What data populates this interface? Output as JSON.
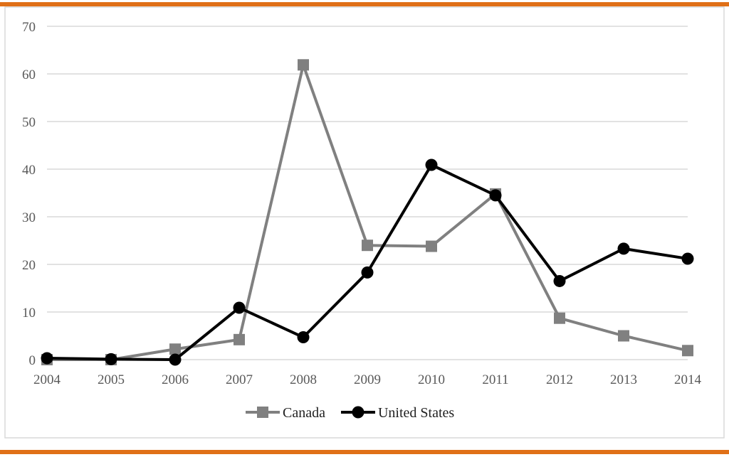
{
  "colors": {
    "accent_rule": "#e07018",
    "canada": "#808080",
    "united_states": "#000000",
    "grid": "#d9d9d9"
  },
  "chart_data": {
    "type": "line",
    "title": "",
    "xlabel": "",
    "ylabel": "",
    "categories": [
      "2004",
      "2005",
      "2006",
      "2007",
      "2008",
      "2009",
      "2010",
      "2011",
      "2012",
      "2013",
      "2014"
    ],
    "ylim": [
      0,
      70
    ],
    "yticks": [
      "0",
      "10",
      "20",
      "30",
      "40",
      "50",
      "60",
      "70"
    ],
    "grid": true,
    "legend_position": "bottom",
    "series": [
      {
        "name": "Canada",
        "marker": "square",
        "values": [
          0,
          0,
          2.2,
          4.2,
          61.9,
          24.0,
          23.8,
          34.8,
          8.7,
          5.0,
          1.9
        ]
      },
      {
        "name": "United States",
        "marker": "circle",
        "values": [
          0.3,
          0.1,
          0,
          10.9,
          4.7,
          18.3,
          40.9,
          34.5,
          16.5,
          23.3,
          21.2
        ]
      }
    ]
  }
}
